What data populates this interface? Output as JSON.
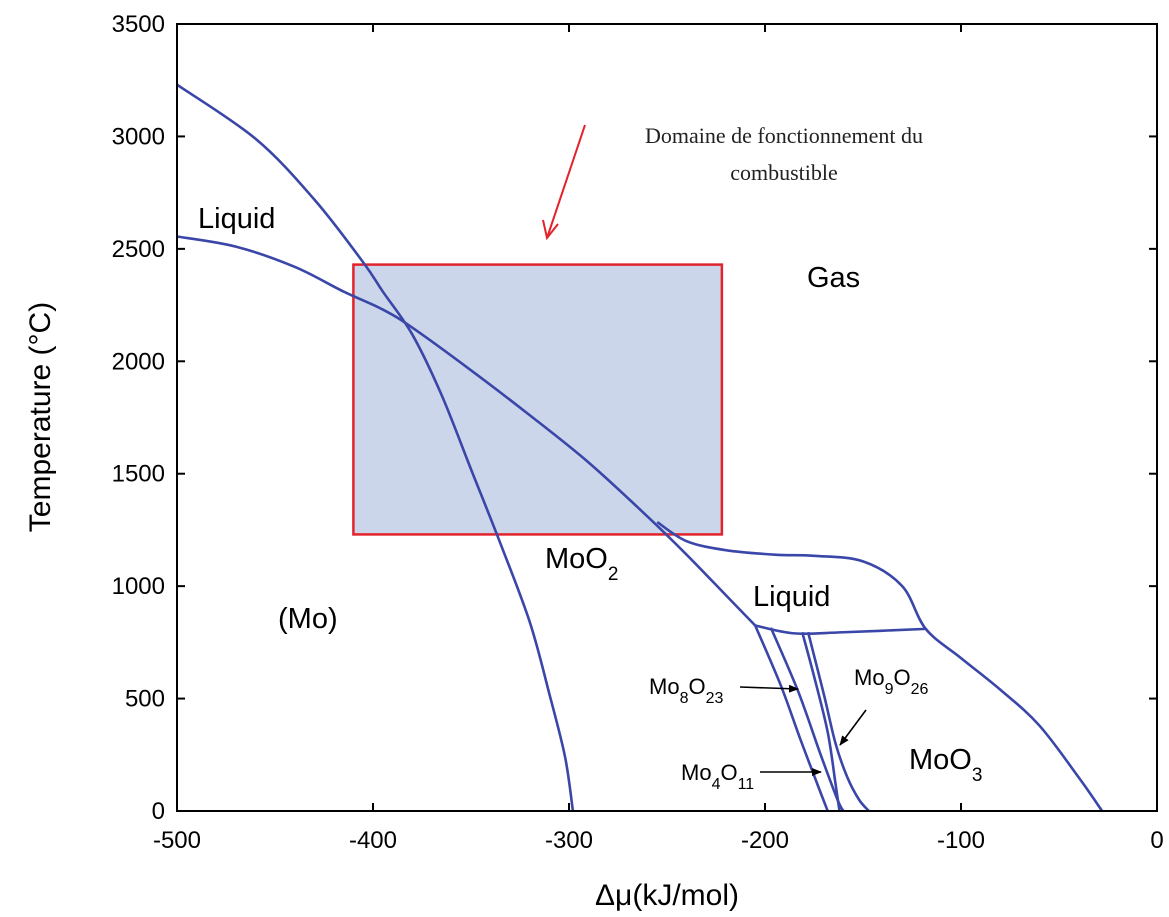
{
  "chart_data": {
    "type": "line",
    "title": "",
    "xlabel": "Δμ(kJ/mol)",
    "ylabel": "Temperature (°C)",
    "xlim": [
      -500,
      0
    ],
    "ylim": [
      0,
      3500
    ],
    "x_ticks": [
      "-500",
      "-400",
      "-300",
      "-200",
      "-100",
      "0"
    ],
    "y_ticks": [
      "0",
      "500",
      "1000",
      "1500",
      "2000",
      "2500",
      "3000",
      "3500"
    ],
    "grid": false,
    "legend": "none",
    "line_color": "#3a46a8",
    "series": [
      {
        "points": [
          [
            -500,
            3230
          ],
          [
            -460,
            2990
          ],
          [
            -430,
            2720
          ],
          [
            -405,
            2440
          ],
          [
            -395,
            2310
          ],
          [
            -380,
            2120
          ],
          [
            -365,
            1850
          ],
          [
            -350,
            1520
          ],
          [
            -335,
            1190
          ],
          [
            -320,
            840
          ],
          [
            -310,
            520
          ],
          [
            -302,
            240
          ],
          [
            -298,
            0
          ]
        ]
      },
      {
        "points": [
          [
            -500,
            2555
          ],
          [
            -470,
            2510
          ],
          [
            -440,
            2420
          ],
          [
            -415,
            2310
          ],
          [
            -395,
            2230
          ],
          [
            -380,
            2150
          ],
          [
            -350,
            1960
          ],
          [
            -320,
            1760
          ],
          [
            -290,
            1550
          ],
          [
            -260,
            1310
          ],
          [
            -240,
            1140
          ],
          [
            -220,
            960
          ],
          [
            -205,
            825
          ]
        ]
      },
      {
        "points": [
          [
            -255,
            1285
          ],
          [
            -240,
            1200
          ],
          [
            -220,
            1160
          ],
          [
            -195,
            1140
          ],
          [
            -175,
            1135
          ],
          [
            -150,
            1110
          ],
          [
            -130,
            1000
          ],
          [
            -118,
            810
          ],
          [
            -100,
            680
          ],
          [
            -80,
            540
          ],
          [
            -60,
            380
          ],
          [
            -40,
            150
          ],
          [
            -28,
            0
          ]
        ]
      },
      {
        "points": [
          [
            -205,
            825
          ],
          [
            -185,
            790
          ],
          [
            -160,
            795
          ],
          [
            -118,
            810
          ]
        ]
      },
      {
        "points": [
          [
            -205,
            825
          ],
          [
            -192,
            560
          ],
          [
            -182,
            320
          ],
          [
            -172,
            90
          ],
          [
            -168,
            0
          ]
        ]
      },
      {
        "points": [
          [
            -197,
            815
          ],
          [
            -183,
            530
          ],
          [
            -172,
            260
          ],
          [
            -163,
            50
          ],
          [
            -160,
            0
          ]
        ]
      },
      {
        "points": [
          [
            -181,
            795
          ],
          [
            -175,
            600
          ],
          [
            -168,
            350
          ],
          [
            -164,
            120
          ],
          [
            -162,
            0
          ]
        ]
      },
      {
        "points": [
          [
            -178,
            795
          ],
          [
            -170,
            520
          ],
          [
            -164,
            300
          ],
          [
            -158,
            150
          ],
          [
            -152,
            50
          ],
          [
            -147,
            0
          ]
        ]
      }
    ],
    "region": {
      "name": "Domaine de fonctionnement du combustible",
      "x": [
        -410,
        -222
      ],
      "y": [
        1230,
        2430
      ],
      "fill": "#ccd6ea",
      "stroke": "#e3232c"
    },
    "annotations": {
      "domaine_line1": "Domaine de fonctionnement du",
      "domaine_line2": "combustible",
      "arrow_color": "#e3232c"
    },
    "region_labels": {
      "liquid_top": "Liquid",
      "gas": "Gas",
      "mo": "(Mo)",
      "moo2_base": "MoO",
      "moo2_sub": "2",
      "liquid_mid": "Liquid",
      "moo3_base": "MoO",
      "moo3_sub": "3",
      "mo8o23_a": "Mo",
      "mo8o23_b": "8",
      "mo8o23_c": "O",
      "mo8o23_d": "23",
      "mo9o26_a": "Mo",
      "mo9o26_b": "9",
      "mo9o26_c": "O",
      "mo9o26_d": "26",
      "mo4o11_a": "Mo",
      "mo4o11_b": "4",
      "mo4o11_c": "O",
      "mo4o11_d": "11"
    }
  }
}
